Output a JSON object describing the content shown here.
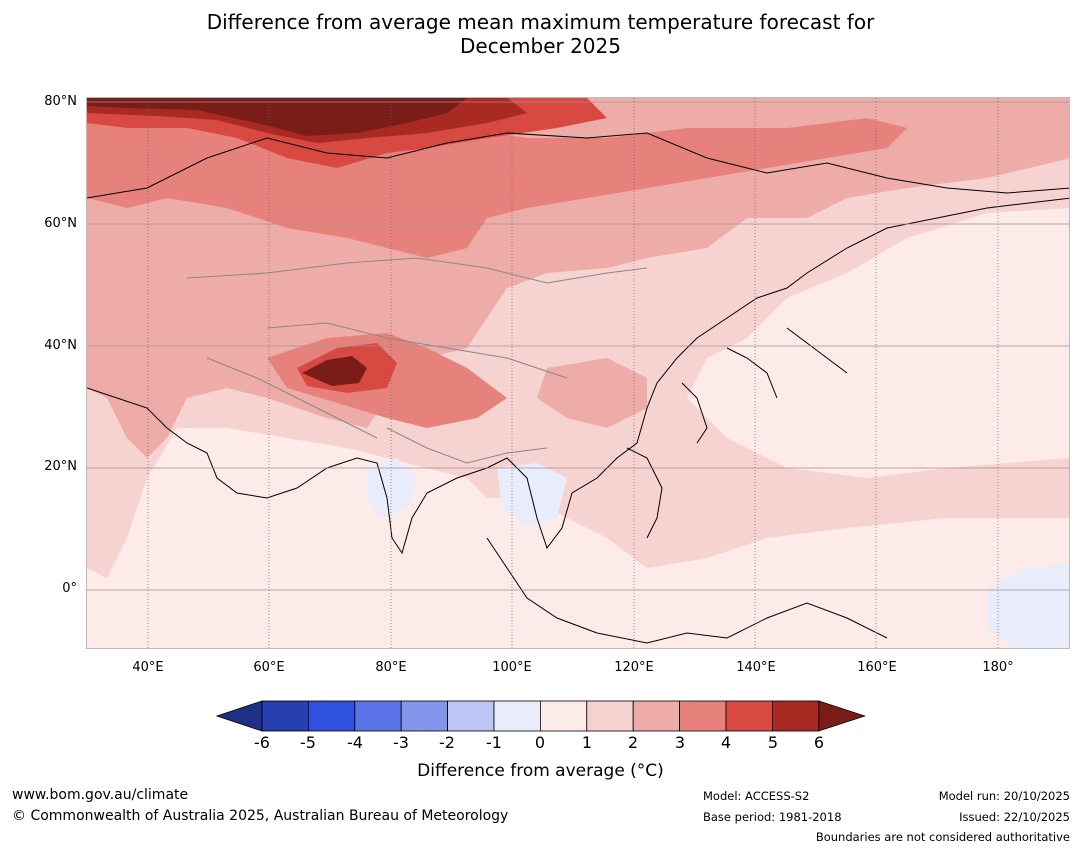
{
  "title_line1": "Difference from average mean maximum temperature forecast for",
  "title_line2": "December 2025",
  "map": {
    "lat_labels": [
      "80°N",
      "60°N",
      "40°N",
      "20°N",
      "0°"
    ],
    "lon_labels": [
      "40°E",
      "60°E",
      "80°E",
      "100°E",
      "120°E",
      "140°E",
      "160°E",
      "180°"
    ],
    "lat_range": [
      -10,
      80
    ],
    "lon_range": [
      30,
      192
    ]
  },
  "colorbar": {
    "ticks": [
      "-6",
      "-5",
      "-4",
      "-3",
      "-2",
      "-1",
      "0",
      "1",
      "2",
      "3",
      "4",
      "5",
      "6"
    ],
    "colors": [
      "#1f2f86",
      "#273fb0",
      "#3050e0",
      "#5a72e6",
      "#8496ec",
      "#bcc6f4",
      "#e8ecfb",
      "#fcebe9",
      "#f6d3d0",
      "#eeaca8",
      "#e6827b",
      "#d84a41",
      "#a92a22",
      "#7a1c17"
    ],
    "label": "Difference from average (°C)"
  },
  "footer": {
    "url": "www.bom.gov.au/climate",
    "copyright": "© Commonwealth of Australia 2025, Australian Bureau of Meteorology",
    "model": "Model: ACCESS-S2",
    "base_period": "Base period: 1981-2018",
    "model_run": "Model run: 20/10/2025",
    "issued": "Issued: 22/10/2025",
    "disclaimer": "Boundaries are not considered authoritative"
  }
}
